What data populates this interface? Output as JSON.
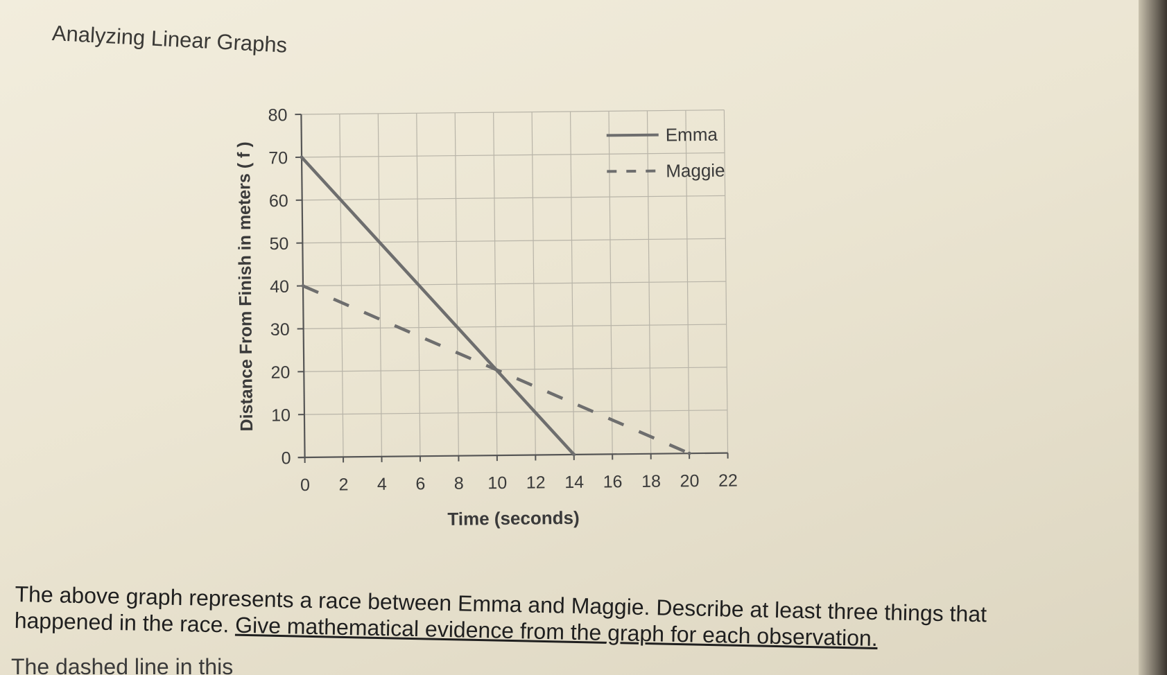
{
  "page": {
    "title": "Analyzing Linear Graphs",
    "prompt_part1": "The above graph represents a race between Emma and Maggie. Describe at least three things that happened in the race.",
    "prompt_part2": "Give mathematical evidence from the graph for each observation.",
    "answer_start": "The dashed line in this"
  },
  "chart_data": {
    "type": "line",
    "title": "",
    "xlabel": "Time (seconds)",
    "ylabel": "Distance From Finish in meters ( f )",
    "xlim": [
      0,
      22
    ],
    "ylim": [
      0,
      80
    ],
    "x_ticks": [
      0,
      2,
      4,
      6,
      8,
      10,
      12,
      14,
      16,
      18,
      20,
      22
    ],
    "y_ticks": [
      0,
      10,
      20,
      30,
      40,
      50,
      60,
      70,
      80
    ],
    "grid": true,
    "legend_position": "top-right",
    "series": [
      {
        "name": "Emma",
        "style": "solid",
        "points": [
          [
            0,
            70
          ],
          [
            14,
            0
          ]
        ]
      },
      {
        "name": "Maggie",
        "style": "dashed",
        "points": [
          [
            0,
            40
          ],
          [
            20,
            0
          ]
        ]
      }
    ],
    "colors": {
      "line": "#6e6e6e",
      "grid": "#b8b4a8",
      "axis": "#555555",
      "text": "#3a3a3a"
    }
  }
}
